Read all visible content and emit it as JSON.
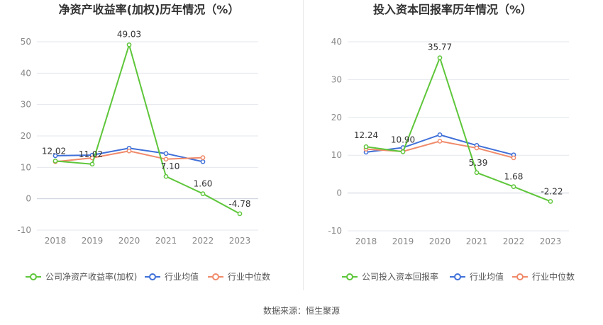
{
  "colors": {
    "company": "#5ec63a",
    "industry_avg": "#3f6fd8",
    "industry_median": "#f08a6a",
    "grid": "#e4e7ee",
    "axis_text": "#888888",
    "title": "#333333"
  },
  "source": {
    "label": "数据来源：",
    "value": "恒生聚源"
  },
  "chart_data": [
    {
      "type": "line",
      "title": "净资产收益率(加权)历年情况（%）",
      "categories": [
        "2018",
        "2019",
        "2020",
        "2021",
        "2022",
        "2023"
      ],
      "ylim": [
        -10,
        50
      ],
      "yticks": [
        -10,
        0,
        10,
        20,
        30,
        40,
        50
      ],
      "grid": true,
      "legend_position": "bottom",
      "series": [
        {
          "name": "公司净资产收益率(加权)",
          "role": "company",
          "values": [
            12.02,
            11.02,
            49.03,
            7.1,
            1.6,
            -4.78
          ],
          "labels": [
            "12.02",
            "11.02",
            "49.03",
            "7.10",
            "1.60",
            "-4.78"
          ]
        },
        {
          "name": "行业均值",
          "role": "industry_avg",
          "values": [
            13.7,
            13.9,
            16.1,
            14.4,
            11.8,
            null
          ]
        },
        {
          "name": "行业中位数",
          "role": "industry_median",
          "values": [
            11.8,
            13.0,
            15.2,
            12.6,
            13.1,
            null
          ]
        }
      ]
    },
    {
      "type": "line",
      "title": "投入资本回报率历年情况（%）",
      "categories": [
        "2018",
        "2019",
        "2020",
        "2021",
        "2022",
        "2023"
      ],
      "ylim": [
        -10,
        40
      ],
      "yticks": [
        -10,
        0,
        10,
        20,
        30,
        40
      ],
      "grid": true,
      "legend_position": "bottom",
      "series": [
        {
          "name": "公司投入资本回报率",
          "role": "company",
          "values": [
            12.24,
            10.9,
            35.77,
            5.39,
            1.68,
            -2.22
          ],
          "labels": [
            "12.24",
            "10.90",
            "35.77",
            "5.39",
            "1.68",
            "-2.22"
          ]
        },
        {
          "name": "行业均值",
          "role": "industry_avg",
          "values": [
            10.8,
            12.0,
            15.4,
            12.6,
            10.1,
            null
          ]
        },
        {
          "name": "行业中位数",
          "role": "industry_median",
          "values": [
            11.6,
            11.0,
            13.7,
            11.9,
            9.3,
            null
          ]
        }
      ]
    }
  ]
}
